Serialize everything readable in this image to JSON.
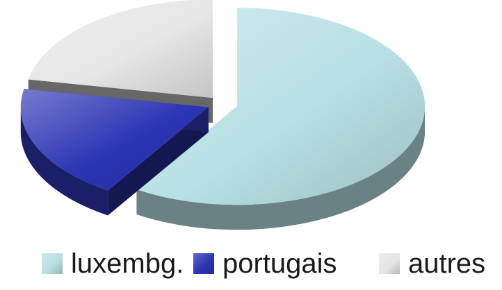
{
  "chart_data": {
    "type": "pie",
    "title": "",
    "style": "3d-exploded",
    "slices": [
      {
        "label": "luxembg.",
        "value": 59,
        "color": "#b8e0e4"
      },
      {
        "label": "portugais",
        "value": 19,
        "color": "#2c35b4"
      },
      {
        "label": "autres",
        "value": 22,
        "color": "#e6e6e6"
      }
    ],
    "legend": {
      "placement": "bottom",
      "items": [
        {
          "label": "luxembg.",
          "color": "#b8e0e4"
        },
        {
          "label": "portugais",
          "color": "#2c35b4"
        },
        {
          "label": "autres",
          "color": "#e6e6e6"
        }
      ]
    }
  }
}
